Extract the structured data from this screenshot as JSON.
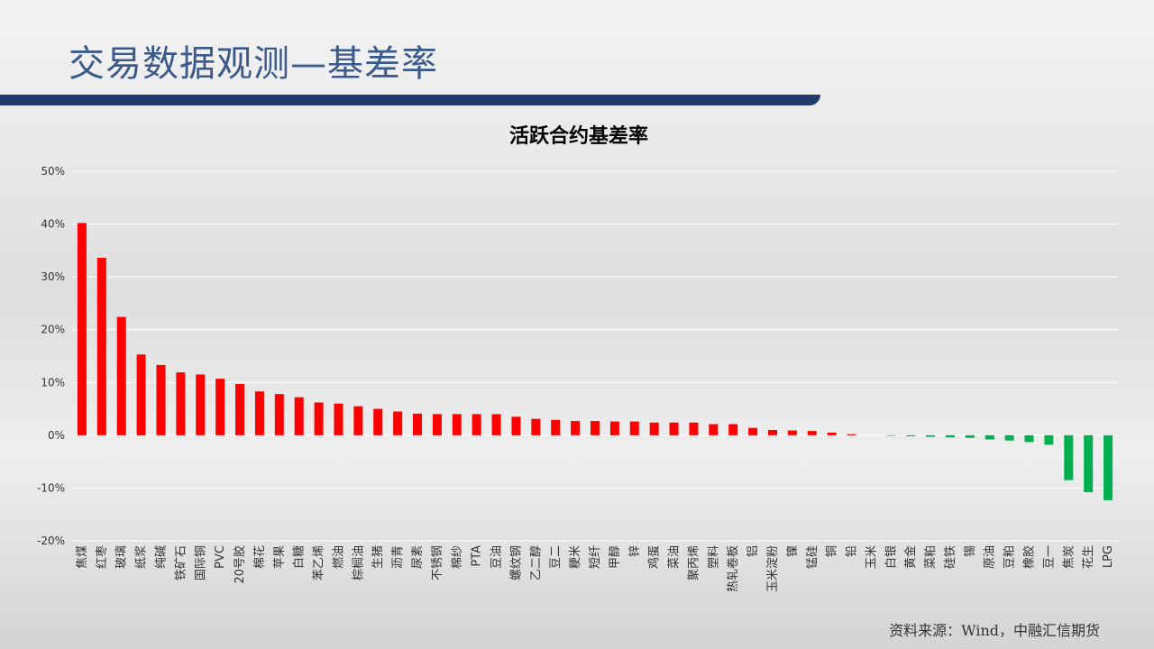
{
  "slide": {
    "title": "交易数据观测—基差率",
    "source": "资料来源：Wind，中融汇信期货"
  },
  "chart_data": {
    "type": "bar",
    "title": "活跃合约基差率",
    "categories": [
      "焦煤",
      "红枣",
      "玻璃",
      "纸浆",
      "纯碱",
      "铁矿石",
      "国际铜",
      "PVC",
      "20号胶",
      "棉花",
      "苹果",
      "白糖",
      "苯乙烯",
      "燃油",
      "棕榈油",
      "生猪",
      "沥青",
      "尿素",
      "不锈钢",
      "棉纱",
      "PTA",
      "豆油",
      "螺纹钢",
      "乙二醇",
      "豆二",
      "粳米",
      "短纤",
      "甲醇",
      "锌",
      "鸡蛋",
      "菜油",
      "聚丙烯",
      "塑料",
      "热轧卷板",
      "铝",
      "玉米淀粉",
      "镍",
      "锰硅",
      "铜",
      "铅",
      "玉米",
      "白银",
      "黄金",
      "菜粕",
      "硅铁",
      "锡",
      "原油",
      "豆粕",
      "橡胶",
      "豆一",
      "焦炭",
      "花生",
      "LPG"
    ],
    "values": [
      40.2,
      33.6,
      22.4,
      15.3,
      13.3,
      11.9,
      11.5,
      10.7,
      9.7,
      8.3,
      7.8,
      7.2,
      6.2,
      6.0,
      5.5,
      5.0,
      4.5,
      4.1,
      4.0,
      4.0,
      4.0,
      4.0,
      3.5,
      3.1,
      2.9,
      2.7,
      2.7,
      2.6,
      2.6,
      2.4,
      2.4,
      2.4,
      2.1,
      2.1,
      1.4,
      1.0,
      0.9,
      0.8,
      0.5,
      0.2,
      0.0,
      -0.1,
      -0.2,
      -0.3,
      -0.4,
      -0.5,
      -0.8,
      -1.0,
      -1.3,
      -1.8,
      -8.5,
      -10.8,
      -12.3
    ],
    "positive_color": "#ff0000",
    "negative_color": "#00b050",
    "ylim": [
      -20,
      50
    ],
    "yticks": [
      {
        "value": -20,
        "label": "-20%"
      },
      {
        "value": -10,
        "label": "-10%"
      },
      {
        "value": 0,
        "label": "0%"
      },
      {
        "value": 10,
        "label": "10%"
      },
      {
        "value": 20,
        "label": "20%"
      },
      {
        "value": 30,
        "label": "30%"
      },
      {
        "value": 40,
        "label": "40%"
      },
      {
        "value": 50,
        "label": "50%"
      }
    ],
    "grid": true
  }
}
